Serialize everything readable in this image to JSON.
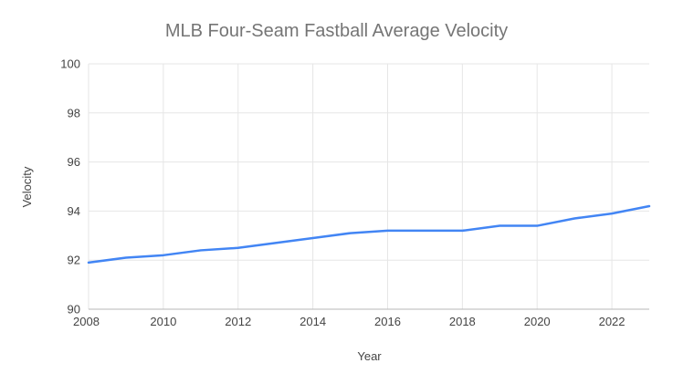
{
  "chart": {
    "title": "MLB Four-Seam Fastball Average Velocity",
    "xlabel": "Year",
    "ylabel": "Velocity"
  },
  "chart_data": {
    "type": "line",
    "title": "MLB Four-Seam Fastball Average Velocity",
    "xlabel": "Year",
    "ylabel": "Velocity",
    "x": [
      2008,
      2009,
      2010,
      2011,
      2012,
      2013,
      2014,
      2015,
      2016,
      2017,
      2018,
      2019,
      2020,
      2021,
      2022,
      2023
    ],
    "values": [
      91.9,
      92.1,
      92.2,
      92.4,
      92.5,
      92.7,
      92.9,
      93.1,
      93.2,
      93.2,
      93.2,
      93.4,
      93.4,
      93.7,
      93.9,
      94.2
    ],
    "xlim": [
      2008,
      2023
    ],
    "ylim": [
      90,
      100
    ],
    "yticks": [
      90,
      92,
      94,
      96,
      98,
      100
    ],
    "xticks": [
      2008,
      2010,
      2012,
      2014,
      2016,
      2018,
      2020,
      2022
    ],
    "grid": true,
    "legend_position": "none",
    "colors": {
      "line": "#4285f4",
      "gridline": "#e6e6e6",
      "axis_line": "#b7b7b7",
      "tick_label": "#444444",
      "title": "#757575",
      "background": "#ffffff"
    }
  }
}
